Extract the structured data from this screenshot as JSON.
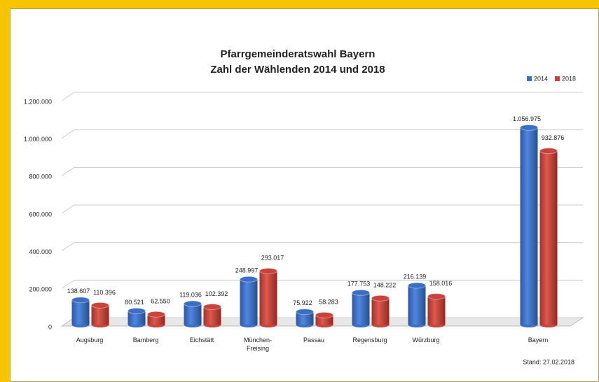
{
  "chart_data": {
    "type": "bar",
    "title": "Pfarrgemeinderatswahl Bayern",
    "subtitle": "Zahl der Wählenden 2014 und 2018",
    "note": "Stand: 27.02.2018",
    "categories": [
      "Augsburg",
      "Bamberg",
      "Eichstätt",
      "München-\nFreising",
      "Passau",
      "Regensburg",
      "Würzburg",
      "Bayern"
    ],
    "series": [
      {
        "name": "2014",
        "color": "#3b6fc6",
        "values": [
          138607,
          80521,
          119036,
          248997,
          75922,
          177753,
          216139,
          1056975
        ],
        "value_labels": [
          "138.607",
          "80.521",
          "119.036",
          "248.997",
          "75.922",
          "177.753",
          "216.139",
          "1.056.975"
        ]
      },
      {
        "name": "2018",
        "color": "#c9433b",
        "values": [
          110396,
          62550,
          102392,
          293017,
          58283,
          148222,
          158016,
          932876
        ],
        "value_labels": [
          "110.396",
          "62.550",
          "102.392",
          "293.017",
          "58.283",
          "148.222",
          "158.016",
          "932.876"
        ]
      }
    ],
    "ylim": [
      0,
      1200000
    ],
    "yticks": [
      0,
      {
        "value": 200000,
        "label": "200.000"
      },
      {
        "value": 400000,
        "label": "400.000"
      },
      {
        "value": 600000,
        "label": "600.000"
      },
      {
        "value": 800000,
        "label": "800.000"
      },
      {
        "value": 1000000,
        "label": "1.000.000"
      },
      {
        "value": 1200000,
        "label": "1.200.000"
      }
    ],
    "grid": true,
    "legend": "top-right"
  }
}
